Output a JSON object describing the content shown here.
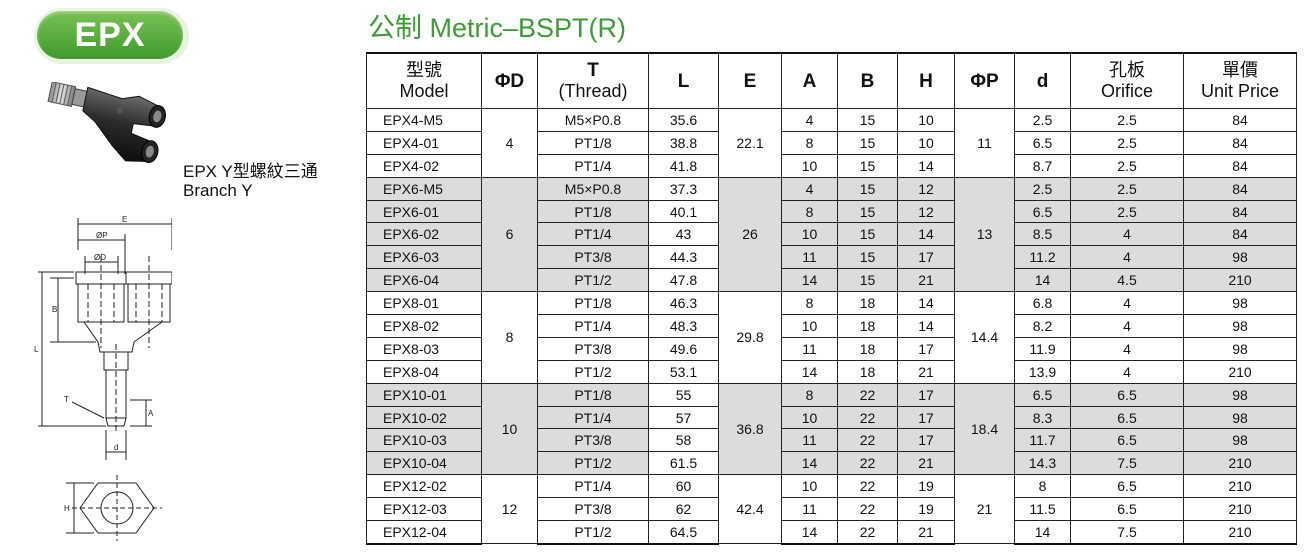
{
  "badge": {
    "label": "EPX"
  },
  "title": "公制 Metric–BSPT(R)",
  "caption": {
    "line1": "EPX Y型螺紋三通",
    "line2": "Branch Y"
  },
  "drawing_labels": {
    "E": "E",
    "P": "ØP",
    "D": "ØD",
    "B": "B",
    "L": "L",
    "T": "T",
    "A": "A",
    "d": "d",
    "H": "H"
  },
  "headers": [
    {
      "l1": "型號",
      "l2": "Model"
    },
    {
      "l1": "ΦD",
      "l2": ""
    },
    {
      "l1": "T",
      "l2": "(Thread)"
    },
    {
      "l1": "L",
      "l2": ""
    },
    {
      "l1": "E",
      "l2": ""
    },
    {
      "l1": "A",
      "l2": ""
    },
    {
      "l1": "B",
      "l2": ""
    },
    {
      "l1": "H",
      "l2": ""
    },
    {
      "l1": "ΦP",
      "l2": ""
    },
    {
      "l1": "d",
      "l2": ""
    },
    {
      "l1": "孔板",
      "l2": "Orifice"
    },
    {
      "l1": "單價",
      "l2": "Unit Price"
    }
  ],
  "groups": [
    {
      "D": "4",
      "E": "22.1",
      "P": "11",
      "rows": [
        {
          "model": "EPX4-M5",
          "T": "M5×P0.8",
          "L": "35.6",
          "A": "4",
          "B": "15",
          "H": "10",
          "d": "2.5",
          "orifice": "2.5",
          "price": "84"
        },
        {
          "model": "EPX4-01",
          "T": "PT1/8",
          "L": "38.8",
          "A": "8",
          "B": "15",
          "H": "10",
          "d": "6.5",
          "orifice": "2.5",
          "price": "84"
        },
        {
          "model": "EPX4-02",
          "T": "PT1/4",
          "L": "41.8",
          "A": "10",
          "B": "15",
          "H": "14",
          "d": "8.7",
          "orifice": "2.5",
          "price": "84"
        }
      ]
    },
    {
      "D": "6",
      "E": "26",
      "P": "13",
      "rows": [
        {
          "model": "EPX6-M5",
          "T": "M5×P0.8",
          "L": "37.3",
          "A": "4",
          "B": "15",
          "H": "12",
          "d": "2.5",
          "orifice": "2.5",
          "price": "84"
        },
        {
          "model": "EPX6-01",
          "T": "PT1/8",
          "L": "40.1",
          "A": "8",
          "B": "15",
          "H": "12",
          "d": "6.5",
          "orifice": "2.5",
          "price": "84"
        },
        {
          "model": "EPX6-02",
          "T": "PT1/4",
          "L": "43",
          "A": "10",
          "B": "15",
          "H": "14",
          "d": "8.5",
          "orifice": "4",
          "price": "84"
        },
        {
          "model": "EPX6-03",
          "T": "PT3/8",
          "L": "44.3",
          "A": "11",
          "B": "15",
          "H": "17",
          "d": "11.2",
          "orifice": "4",
          "price": "98"
        },
        {
          "model": "EPX6-04",
          "T": "PT1/2",
          "L": "47.8",
          "A": "14",
          "B": "15",
          "H": "21",
          "d": "14",
          "orifice": "4.5",
          "price": "210"
        }
      ]
    },
    {
      "D": "8",
      "E": "29.8",
      "P": "14.4",
      "rows": [
        {
          "model": "EPX8-01",
          "T": "PT1/8",
          "L": "46.3",
          "A": "8",
          "B": "18",
          "H": "14",
          "d": "6.8",
          "orifice": "4",
          "price": "98"
        },
        {
          "model": "EPX8-02",
          "T": "PT1/4",
          "L": "48.3",
          "A": "10",
          "B": "18",
          "H": "14",
          "d": "8.2",
          "orifice": "4",
          "price": "98"
        },
        {
          "model": "EPX8-03",
          "T": "PT3/8",
          "L": "49.6",
          "A": "11",
          "B": "18",
          "H": "17",
          "d": "11.9",
          "orifice": "4",
          "price": "98"
        },
        {
          "model": "EPX8-04",
          "T": "PT1/2",
          "L": "53.1",
          "A": "14",
          "B": "18",
          "H": "21",
          "d": "13.9",
          "orifice": "4",
          "price": "210"
        }
      ]
    },
    {
      "D": "10",
      "E": "36.8",
      "P": "18.4",
      "rows": [
        {
          "model": "EPX10-01",
          "T": "PT1/8",
          "L": "55",
          "A": "8",
          "B": "22",
          "H": "17",
          "d": "6.5",
          "orifice": "6.5",
          "price": "98"
        },
        {
          "model": "EPX10-02",
          "T": "PT1/4",
          "L": "57",
          "A": "10",
          "B": "22",
          "H": "17",
          "d": "8.3",
          "orifice": "6.5",
          "price": "98"
        },
        {
          "model": "EPX10-03",
          "T": "PT3/8",
          "L": "58",
          "A": "11",
          "B": "22",
          "H": "17",
          "d": "11.7",
          "orifice": "6.5",
          "price": "98"
        },
        {
          "model": "EPX10-04",
          "T": "PT1/2",
          "L": "61.5",
          "A": "14",
          "B": "22",
          "H": "21",
          "d": "14.3",
          "orifice": "7.5",
          "price": "210"
        }
      ]
    },
    {
      "D": "12",
      "E": "42.4",
      "P": "21",
      "rows": [
        {
          "model": "EPX12-02",
          "T": "PT1/4",
          "L": "60",
          "A": "10",
          "B": "22",
          "H": "19",
          "d": "8",
          "orifice": "6.5",
          "price": "210"
        },
        {
          "model": "EPX12-03",
          "T": "PT3/8",
          "L": "62",
          "A": "11",
          "B": "22",
          "H": "19",
          "d": "11.5",
          "orifice": "6.5",
          "price": "210"
        },
        {
          "model": "EPX12-04",
          "T": "PT1/2",
          "L": "64.5",
          "A": "14",
          "B": "22",
          "H": "21",
          "d": "14",
          "orifice": "7.5",
          "price": "210"
        }
      ]
    }
  ]
}
